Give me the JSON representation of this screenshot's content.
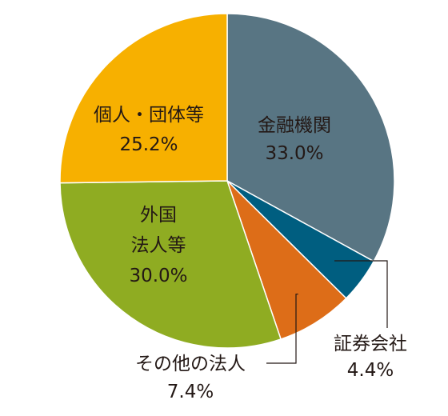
{
  "chart_data": {
    "type": "pie",
    "slices": [
      {
        "label": "金融機関",
        "value": 33.0,
        "value_text": "33.0%",
        "color": "#587583"
      },
      {
        "label": "証券会社",
        "value": 4.4,
        "value_text": "4.4%",
        "color": "#005E80"
      },
      {
        "label": "その他の法人",
        "value": 7.4,
        "value_text": "7.4%",
        "color": "#DD6D18"
      },
      {
        "label": "外国法人等",
        "label_lines": [
          "外国",
          "法人等"
        ],
        "value": 30.0,
        "value_text": "30.0%",
        "color": "#8FAC22"
      },
      {
        "label": "個人・団体等",
        "value": 25.2,
        "value_text": "25.2%",
        "color": "#F7B000"
      }
    ],
    "start": "top",
    "direction": "clockwise"
  }
}
